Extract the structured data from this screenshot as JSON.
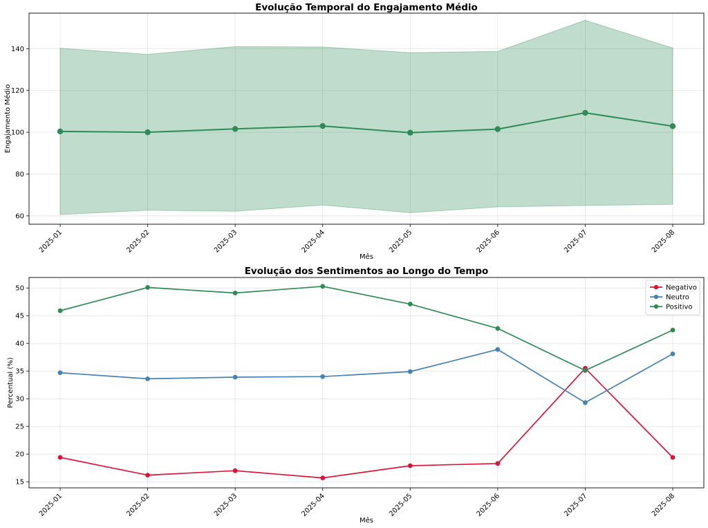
{
  "chart_data": [
    {
      "type": "area",
      "title": "Evolução Temporal do Engajamento Médio",
      "xlabel": "Mês",
      "ylabel": "Engajamento Médio",
      "categories": [
        "2025-01",
        "2025-02",
        "2025-03",
        "2025-04",
        "2025-05",
        "2025-06",
        "2025-07",
        "2025-08"
      ],
      "yticks": [
        60,
        80,
        100,
        120,
        140
      ],
      "ylim": [
        56,
        157
      ],
      "grid": true,
      "series": [
        {
          "values": [
            100.4,
            100.0,
            101.6,
            103.0,
            99.8,
            101.5,
            109.3,
            102.9
          ],
          "band_upper": [
            140.2,
            137.3,
            141.0,
            140.8,
            138.1,
            138.7,
            153.6,
            140.3
          ],
          "band_lower": [
            60.6,
            62.7,
            62.2,
            65.2,
            61.5,
            64.3,
            65.0,
            65.5
          ],
          "color": "#2e8b57"
        }
      ]
    },
    {
      "type": "line",
      "title": "Evolução dos Sentimentos ao Longo do Tempo",
      "xlabel": "Mês",
      "ylabel": "Percentual (%)",
      "categories": [
        "2025-01",
        "2025-02",
        "2025-03",
        "2025-04",
        "2025-05",
        "2025-06",
        "2025-07",
        "2025-08"
      ],
      "yticks": [
        15,
        20,
        25,
        30,
        35,
        40,
        45,
        50
      ],
      "ylim": [
        13.9,
        51.9
      ],
      "grid": true,
      "legend": "top-right",
      "series": [
        {
          "name": "Negativo",
          "color": "#dc143c",
          "values": [
            19.4,
            16.2,
            17.0,
            15.7,
            17.9,
            18.3,
            35.5,
            19.4
          ]
        },
        {
          "name": "Neutro",
          "color": "#4682b4",
          "values": [
            34.7,
            33.6,
            33.9,
            34.0,
            34.9,
            38.9,
            29.3,
            38.1
          ]
        },
        {
          "name": "Positivo",
          "color": "#2e8b57",
          "values": [
            45.9,
            50.1,
            49.1,
            50.3,
            47.1,
            42.7,
            35.1,
            42.4
          ]
        }
      ]
    }
  ]
}
